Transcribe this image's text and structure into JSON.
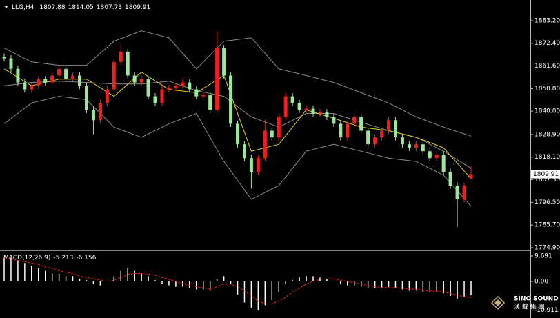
{
  "chart_data": [
    {
      "type": "candlestick",
      "title": "LLG,H4",
      "open": [
        1866.0,
        1865.2,
        1860.2,
        1853.7,
        1850.4,
        1852.1,
        1855.3,
        1853.7,
        1857.0,
        1860.2,
        1855.3,
        1857.0,
        1852.1,
        1840.6,
        1835.7,
        1843.9,
        1850.4,
        1863.5,
        1868.4,
        1857.0,
        1853.7,
        1855.3,
        1847.1,
        1843.9,
        1850.4,
        1851.0,
        1852.1,
        1853.7,
        1850.4,
        1847.1,
        1847.8,
        1840.6,
        1870.1,
        1857.0,
        1834.0,
        1824.2,
        1817.6,
        1811.1,
        1817.6,
        1830.7,
        1827.5,
        1837.3,
        1847.1,
        1843.9,
        1840.6,
        1841.2,
        1838.9,
        1839.5,
        1837.3,
        1834.0,
        1827.5,
        1834.0,
        1837.3,
        1830.7,
        1824.2,
        1827.5,
        1830.7,
        1835.7,
        1827.5,
        1824.2,
        1822.5,
        1824.2,
        1820.9,
        1817.6,
        1819.3,
        1811.1,
        1804.5,
        1798.0,
        1807.88
      ],
      "high": [
        1867.5,
        1866.7,
        1861.7,
        1855.2,
        1853.6,
        1856.8,
        1856.8,
        1858.5,
        1861.7,
        1861.7,
        1858.5,
        1858.5,
        1853.6,
        1842.1,
        1845.4,
        1851.9,
        1865.0,
        1872.0,
        1869.9,
        1858.5,
        1856.8,
        1856.8,
        1848.6,
        1851.9,
        1852.5,
        1853.6,
        1855.2,
        1855.2,
        1851.9,
        1849.3,
        1849.3,
        1878.3,
        1871.6,
        1858.5,
        1835.5,
        1825.7,
        1819.1,
        1819.1,
        1836.0,
        1832.2,
        1838.8,
        1848.6,
        1848.6,
        1845.4,
        1842.7,
        1842.7,
        1841.0,
        1841.0,
        1838.8,
        1835.5,
        1835.5,
        1838.8,
        1838.8,
        1832.2,
        1829.0,
        1832.2,
        1837.2,
        1837.2,
        1829.0,
        1825.7,
        1825.7,
        1825.7,
        1822.4,
        1820.8,
        1820.8,
        1812.6,
        1806.0,
        1806.0,
        1814.05
      ],
      "low": [
        1863.7,
        1858.7,
        1852.2,
        1848.9,
        1848.9,
        1850.6,
        1852.2,
        1852.2,
        1855.5,
        1853.8,
        1853.8,
        1850.6,
        1839.1,
        1829.0,
        1834.2,
        1842.4,
        1848.9,
        1862.0,
        1855.5,
        1852.2,
        1852.2,
        1845.6,
        1842.4,
        1842.4,
        1848.9,
        1849.5,
        1850.6,
        1848.9,
        1845.6,
        1845.6,
        1839.1,
        1839.1,
        1855.5,
        1832.5,
        1822.7,
        1816.1,
        1803.0,
        1809.6,
        1816.1,
        1826.0,
        1826.0,
        1835.8,
        1842.4,
        1839.1,
        1839.1,
        1837.4,
        1837.4,
        1835.8,
        1832.5,
        1826.0,
        1826.0,
        1832.5,
        1829.2,
        1822.7,
        1822.7,
        1826.0,
        1829.2,
        1826.0,
        1822.7,
        1821.0,
        1821.0,
        1819.4,
        1816.1,
        1816.1,
        1809.6,
        1803.0,
        1784.8,
        1796.5,
        1807.73
      ],
      "close": [
        1865.2,
        1860.2,
        1853.7,
        1850.4,
        1852.1,
        1855.3,
        1853.7,
        1857.0,
        1860.2,
        1855.3,
        1857.0,
        1852.1,
        1840.6,
        1835.7,
        1843.9,
        1850.4,
        1863.5,
        1868.4,
        1857.0,
        1853.7,
        1855.3,
        1847.1,
        1843.9,
        1850.4,
        1851.0,
        1852.1,
        1853.7,
        1850.4,
        1847.1,
        1847.8,
        1840.6,
        1870.1,
        1857.0,
        1834.0,
        1824.2,
        1817.6,
        1811.1,
        1817.6,
        1830.7,
        1827.5,
        1837.3,
        1847.1,
        1843.9,
        1840.6,
        1841.2,
        1838.9,
        1839.5,
        1837.3,
        1834.0,
        1827.5,
        1834.0,
        1837.3,
        1830.7,
        1824.2,
        1827.5,
        1830.7,
        1835.7,
        1827.5,
        1824.2,
        1822.5,
        1824.2,
        1820.9,
        1817.6,
        1819.3,
        1811.1,
        1804.5,
        1798.0,
        1804.5,
        1809.91
      ],
      "up_color": "#ff1a1a",
      "down_color": "#9be89b",
      "overlays": [
        {
          "color": "#8c8c8c",
          "values": [
            1870.1,
            1863.5,
            1861.9,
            1861.9,
            1873.4,
            1878.3,
            1875.0,
            1860.2,
            1873.4,
            1875.0,
            1860.2,
            1857.0,
            1853.7,
            1848.8,
            1843.9,
            1837.3,
            1832.4,
            1828.1
          ]
        },
        {
          "color": "#8c8c8c",
          "values": [
            1852.1,
            1853.7,
            1854.3,
            1853.7,
            1853.0,
            1853.0,
            1854.3,
            1849.8,
            1847.1,
            1837.3,
            1832.4,
            1838.9,
            1838.9,
            1834.7,
            1830.7,
            1827.5,
            1820.9,
            1812.7
          ]
        },
        {
          "color": "#8c8c8c",
          "values": [
            1834.0,
            1843.9,
            1847.1,
            1845.5,
            1832.4,
            1827.5,
            1834.0,
            1838.9,
            1816.0,
            1798.0,
            1804.5,
            1820.9,
            1824.2,
            1820.9,
            1817.6,
            1816.0,
            1809.4,
            1794.7
          ]
        },
        {
          "color": "#e8d020",
          "values": [
            1860.2,
            1852.1,
            1855.3,
            1855.3,
            1847.1,
            1858.6,
            1850.4,
            1848.8,
            1857.0,
            1820.9,
            1824.2,
            1840.6,
            1836.6,
            1832.4,
            1830.7,
            1827.5,
            1822.5,
            1807.8
          ]
        }
      ],
      "ylim": [
        1773.9,
        1891.4
      ],
      "yticks": [
        {
          "value": 1883.2,
          "label": "1883.20"
        },
        {
          "value": 1872.4,
          "label": "1872.40"
        },
        {
          "value": 1861.6,
          "label": "1861.60"
        },
        {
          "value": 1850.8,
          "label": "1850.80"
        },
        {
          "value": 1840,
          "label": "1840.00"
        },
        {
          "value": 1828.9,
          "label": "1828.90"
        },
        {
          "value": 1818.1,
          "label": "1818.10"
        },
        {
          "value": 1807.3,
          "label": "1807.30"
        },
        {
          "value": 1796.5,
          "label": "1796.50"
        },
        {
          "value": 1785.7,
          "label": "1785.70"
        },
        {
          "value": 1774.9,
          "label": "1774.90"
        }
      ]
    },
    {
      "type": "macd",
      "title": "MACD(12,26,9)",
      "values": [
        9,
        9,
        8,
        7,
        6,
        5,
        4,
        3,
        3,
        2,
        2,
        1,
        0.5,
        -1,
        -1.5,
        0,
        2,
        4,
        5,
        4,
        3,
        2,
        0.5,
        -1,
        -1.5,
        -2,
        -2,
        -2.5,
        -3,
        -3,
        -3.5,
        1,
        2,
        -1,
        -5,
        -8,
        -10,
        -11,
        -9,
        -7,
        -4,
        -1,
        0.5,
        1.5,
        2,
        2,
        1.5,
        1,
        0,
        -1,
        -1.5,
        -1.5,
        -2,
        -2.5,
        -2.5,
        -2.5,
        -2,
        -2.5,
        -3,
        -3.5,
        -3.5,
        -4,
        -4,
        -4,
        -4.5,
        -5.5,
        -6.5,
        -6,
        -5.213
      ],
      "signal": [
        9,
        8.5,
        8,
        7.5,
        7,
        6.5,
        5.5,
        5,
        4,
        3.5,
        3,
        2,
        1.5,
        1,
        0.5,
        0,
        0.5,
        1.5,
        2.5,
        3,
        3,
        2.8,
        2.3,
        1.5,
        0.8,
        0,
        -0.8,
        -1.5,
        -2,
        -2.5,
        -2.8,
        -2,
        -1,
        -1,
        -2,
        -3.5,
        -5.5,
        -7.5,
        -8.5,
        -8.5,
        -7.5,
        -6,
        -4,
        -2.5,
        -1,
        0,
        0.8,
        1,
        1,
        0.5,
        0,
        -0.5,
        -1,
        -1.5,
        -2,
        -2.2,
        -2.3,
        -2.4,
        -2.6,
        -2.8,
        -3,
        -3.3,
        -3.6,
        -3.8,
        -4,
        -4.5,
        -5.2,
        -5.8,
        -6.156
      ],
      "bar_color": "#ffffff",
      "signal_color": "#ff2020",
      "ylim": [
        -13.1,
        11.0
      ],
      "yticks": [
        9.691,
        {
          "value": 0,
          "label": "0.00"
        },
        -10.911
      ]
    }
  ],
  "watermark": {
    "brand": "SINO SOUND",
    "subtitle": "漢 聲 集 團"
  }
}
